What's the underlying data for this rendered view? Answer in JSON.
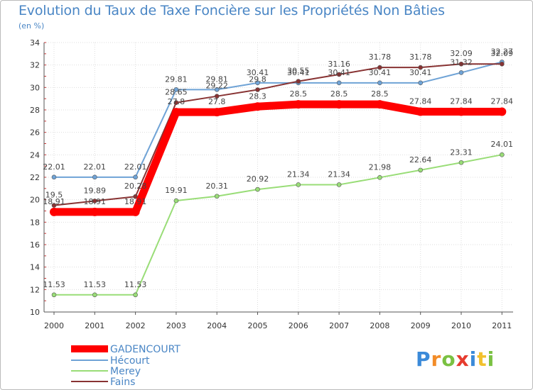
{
  "chart_data": {
    "type": "line",
    "title": "Evolution du Taux de Taxe Foncière sur les Propriétés Non Bâties",
    "subtitle": "(en %)",
    "x": [
      "2000",
      "2001",
      "2002",
      "2003",
      "2004",
      "2005",
      "2006",
      "2007",
      "2008",
      "2009",
      "2010",
      "2011"
    ],
    "ylim": [
      10,
      34
    ],
    "yticks": [
      10,
      12,
      14,
      16,
      18,
      20,
      22,
      24,
      26,
      28,
      30,
      32,
      34
    ],
    "grid": true,
    "legend_position": "bottom-left",
    "series": [
      {
        "name": "GADENCOURT",
        "color": "#ff0000",
        "values": [
          18.91,
          18.91,
          18.91,
          27.8,
          27.8,
          28.3,
          28.5,
          28.5,
          28.5,
          27.84,
          27.84,
          27.84
        ],
        "labels": [
          "18.91",
          "18.91",
          "18.91",
          "27.8",
          "27.8",
          "28.3",
          "28.5",
          "28.5",
          "28.5",
          "27.84",
          "27.84",
          "27.84"
        ]
      },
      {
        "name": "Hécourt",
        "color": "#6fa3d6",
        "values": [
          22.01,
          22.01,
          22.01,
          29.81,
          29.81,
          30.41,
          30.41,
          30.41,
          30.41,
          30.41,
          31.32,
          32.27
        ],
        "labels": [
          "22.01",
          "22.01",
          "22.01",
          "29.81",
          "29.81",
          "30.41",
          "30.41",
          "30.41",
          "30.41",
          "30.41",
          "31.32",
          "32.27"
        ]
      },
      {
        "name": "Merey",
        "color": "#99dd77",
        "values": [
          11.53,
          11.53,
          11.53,
          19.91,
          20.31,
          20.92,
          21.34,
          21.34,
          21.98,
          22.64,
          23.31,
          24.01
        ],
        "labels": [
          "11.53",
          "11.53",
          "11.53",
          "19.91",
          "20.31",
          "20.92",
          "21.34",
          "21.34",
          "21.98",
          "22.64",
          "23.31",
          "24.01"
        ]
      },
      {
        "name": "Fains",
        "color": "#883333",
        "values": [
          19.5,
          19.89,
          20.28,
          28.65,
          29.22,
          29.8,
          30.55,
          31.16,
          31.78,
          31.78,
          32.09,
          32.09
        ],
        "labels": [
          "19.5",
          "19.89",
          "20.28",
          "28.65",
          "29.22",
          "29.8",
          "30.55",
          "31.16",
          "31.78",
          "31.78",
          "32.09",
          "32.09"
        ]
      }
    ]
  },
  "logo": {
    "letters": [
      "P",
      "r",
      "o",
      "x",
      "i",
      "t",
      "i"
    ],
    "colors": [
      "#3b8ad9",
      "#f28c28",
      "#7ac142",
      "#e63b2e",
      "#3b8ad9",
      "#f2c12e",
      "#7ac142"
    ]
  }
}
